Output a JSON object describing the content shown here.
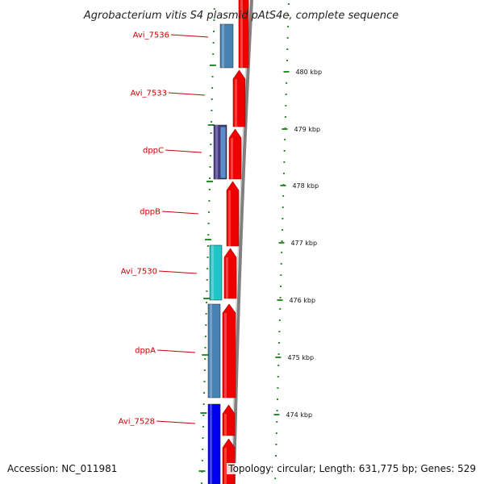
{
  "title": "Agrobacterium vitis S4 plasmid pAtS4e, complete sequence",
  "accession": "Accession: NC_011981",
  "topology": "Topology: circular; Length: 631,775 bp; Genes: 529",
  "genes": [
    {
      "label": "Avi_7536",
      "color": "#4682b4"
    },
    {
      "label": "Avi_7533",
      "color": null
    },
    {
      "label": "dppC",
      "color": "#483d8b"
    },
    {
      "label": "dppB",
      "color": null
    },
    {
      "label": "Avi_7530",
      "color": "#20c5c5"
    },
    {
      "label": "dppA",
      "color": "#4682b4"
    },
    {
      "label": "Avi_7528",
      "color": "#0000ee"
    }
  ],
  "ticks": [
    "480 kbp",
    "479 kbp",
    "478 kbp",
    "477 kbp",
    "476 kbp",
    "475 kbp",
    "474 kbp"
  ],
  "colors": {
    "cds": "#ee0000",
    "backbone": "#808080",
    "gene_label": "#cc0000",
    "tick": "#2e8b2e"
  }
}
